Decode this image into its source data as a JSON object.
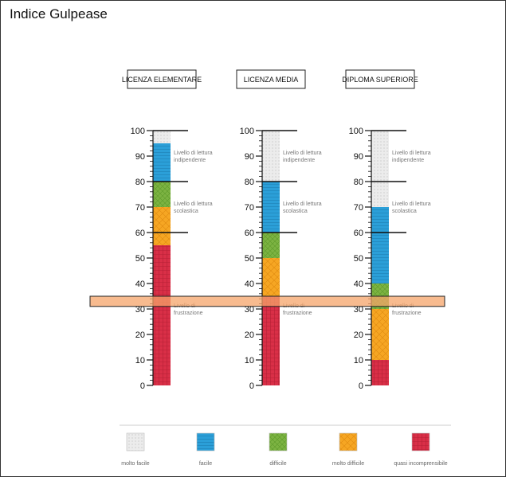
{
  "title": "Indice Gulpease",
  "chart_data": {
    "type": "bar",
    "subtype": "stacked-thermometer",
    "ylim": [
      0,
      100
    ],
    "yticks": [
      0,
      10,
      20,
      30,
      40,
      50,
      60,
      70,
      80,
      90,
      100
    ],
    "columns": [
      {
        "header": "LICENZA ELEMENTARE",
        "segments": [
          {
            "category": "quasi incomprensibile",
            "from": 0,
            "to": 55
          },
          {
            "category": "molto difficile",
            "from": 55,
            "to": 70
          },
          {
            "category": "difficile",
            "from": 70,
            "to": 80
          },
          {
            "category": "facile",
            "from": 80,
            "to": 95
          },
          {
            "category": "molto facile",
            "from": 95,
            "to": 100
          }
        ],
        "level_labels": [
          {
            "line1": "Livello di lettura",
            "line2": "indipendente",
            "value": 90
          },
          {
            "line1": "Livello di lettura",
            "line2": "scolastica",
            "value": 70
          },
          {
            "line1": "Livello di",
            "line2": "frustrazione",
            "value": 30
          }
        ]
      },
      {
        "header": "LICENZA MEDIA",
        "segments": [
          {
            "category": "quasi incomprensibile",
            "from": 0,
            "to": 35
          },
          {
            "category": "molto difficile",
            "from": 35,
            "to": 50
          },
          {
            "category": "difficile",
            "from": 50,
            "to": 60
          },
          {
            "category": "facile",
            "from": 60,
            "to": 80
          },
          {
            "category": "molto facile",
            "from": 80,
            "to": 100
          }
        ],
        "level_labels": [
          {
            "line1": "Livello di lettura",
            "line2": "indipendente",
            "value": 90
          },
          {
            "line1": "Livello di lettura",
            "line2": "scolastica",
            "value": 70
          },
          {
            "line1": "Livello di",
            "line2": "frustrazione",
            "value": 30
          }
        ]
      },
      {
        "header": "DIPLOMA SUPERIORE",
        "segments": [
          {
            "category": "quasi incomprensibile",
            "from": 0,
            "to": 10
          },
          {
            "category": "molto difficile",
            "from": 10,
            "to": 30
          },
          {
            "category": "difficile",
            "from": 30,
            "to": 40
          },
          {
            "category": "facile",
            "from": 40,
            "to": 70
          },
          {
            "category": "molto facile",
            "from": 70,
            "to": 100
          }
        ],
        "level_labels": [
          {
            "line1": "Livello di lettura",
            "line2": "indipendente",
            "value": 90
          },
          {
            "line1": "Livello di lettura",
            "line2": "scolastica",
            "value": 70
          },
          {
            "line1": "Livello di",
            "line2": "frustrazione",
            "value": 30
          }
        ]
      }
    ],
    "highlight_band": {
      "from": 31,
      "to": 35,
      "color": "#f5a46a"
    },
    "legend": [
      {
        "label": "molto facile",
        "color": "#e6e6e6"
      },
      {
        "label": "facile",
        "color": "#2b9fd8"
      },
      {
        "label": "difficile",
        "color": "#7cb342"
      },
      {
        "label": "molto difficile",
        "color": "#f6a623"
      },
      {
        "label": "quasi incomprensibile",
        "color": "#d92f47"
      }
    ]
  }
}
